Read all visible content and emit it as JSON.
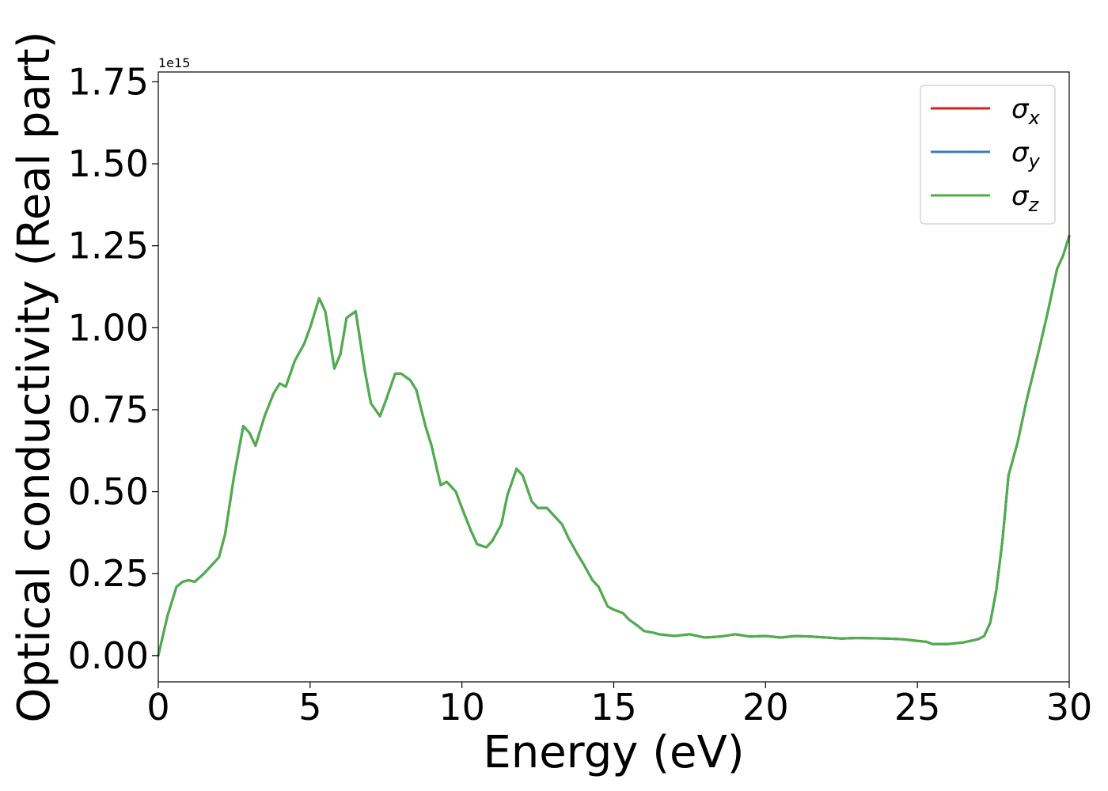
{
  "chart_data": {
    "type": "line",
    "xlabel": "Energy (eV)",
    "ylabel": "Optical conductivity (Real part)",
    "y_offset_label": "1e15",
    "xlim": [
      0,
      30
    ],
    "ylim": [
      -0.08,
      1.78
    ],
    "xticks": [
      0,
      5,
      10,
      15,
      20,
      25,
      30
    ],
    "xtick_labels": [
      "0",
      "5",
      "10",
      "15",
      "20",
      "25",
      "30"
    ],
    "yticks": [
      0.0,
      0.25,
      0.5,
      0.75,
      1.0,
      1.25,
      1.5,
      1.75
    ],
    "ytick_labels": [
      "0.00",
      "0.25",
      "0.50",
      "0.75",
      "1.00",
      "1.25",
      "1.50",
      "1.75"
    ],
    "grid": false,
    "legend_position": "top-right",
    "series": [
      {
        "name": "σx",
        "name_base": "σ",
        "name_sub": "x",
        "color": "#e41a1c",
        "x": [
          0,
          0.3,
          0.6,
          0.8,
          1.0,
          1.2,
          1.5,
          1.8,
          2.0,
          2.2,
          2.5,
          2.8,
          3.0,
          3.2,
          3.5,
          3.8,
          4.0,
          4.2,
          4.5,
          4.8,
          5.0,
          5.3,
          5.5,
          5.8,
          6.0,
          6.2,
          6.5,
          6.8,
          7.0,
          7.3,
          7.5,
          7.8,
          8.0,
          8.3,
          8.5,
          8.8,
          9.0,
          9.3,
          9.5,
          9.8,
          10.0,
          10.3,
          10.5,
          10.8,
          11.0,
          11.3,
          11.5,
          11.8,
          12.0,
          12.3,
          12.5,
          12.8,
          13.0,
          13.3,
          13.5,
          13.8,
          14.0,
          14.3,
          14.5,
          14.8,
          15.0,
          15.3,
          15.5,
          15.8,
          16.0,
          16.3,
          16.5,
          17.0,
          17.5,
          18.0,
          18.5,
          19.0,
          19.5,
          20.0,
          20.5,
          21.0,
          21.5,
          22.0,
          22.5,
          23.0,
          23.5,
          24.0,
          24.5,
          25.0,
          25.3,
          25.5,
          26.0,
          26.5,
          27.0,
          27.2,
          27.4,
          27.6,
          27.8,
          28.0,
          28.3,
          28.6,
          29.0,
          29.3,
          29.6,
          29.8,
          30.0
        ],
        "y": [
          0.0,
          0.12,
          0.21,
          0.225,
          0.23,
          0.225,
          0.25,
          0.28,
          0.3,
          0.37,
          0.55,
          0.7,
          0.68,
          0.64,
          0.73,
          0.8,
          0.83,
          0.82,
          0.9,
          0.95,
          1.0,
          1.09,
          1.05,
          0.875,
          0.92,
          1.03,
          1.05,
          0.87,
          0.77,
          0.73,
          0.78,
          0.86,
          0.86,
          0.84,
          0.81,
          0.7,
          0.64,
          0.52,
          0.53,
          0.5,
          0.45,
          0.38,
          0.34,
          0.33,
          0.35,
          0.4,
          0.49,
          0.57,
          0.55,
          0.47,
          0.45,
          0.45,
          0.43,
          0.4,
          0.36,
          0.31,
          0.28,
          0.23,
          0.21,
          0.15,
          0.14,
          0.13,
          0.11,
          0.09,
          0.075,
          0.07,
          0.065,
          0.06,
          0.065,
          0.055,
          0.058,
          0.065,
          0.058,
          0.06,
          0.055,
          0.06,
          0.058,
          0.055,
          0.052,
          0.054,
          0.053,
          0.052,
          0.05,
          0.045,
          0.042,
          0.035,
          0.035,
          0.04,
          0.05,
          0.06,
          0.1,
          0.2,
          0.35,
          0.55,
          0.65,
          0.78,
          0.93,
          1.05,
          1.18,
          1.22,
          1.28
        ]
      },
      {
        "name": "σy",
        "name_base": "σ",
        "name_sub": "y",
        "color": "#377eb8",
        "x": [
          0,
          0.3,
          0.6,
          0.8,
          1.0,
          1.2,
          1.5,
          1.8,
          2.0,
          2.2,
          2.5,
          2.8,
          3.0,
          3.2,
          3.5,
          3.8,
          4.0,
          4.2,
          4.5,
          4.8,
          5.0,
          5.3,
          5.5,
          5.8,
          6.0,
          6.2,
          6.5,
          6.8,
          7.0,
          7.3,
          7.5,
          7.8,
          8.0,
          8.3,
          8.5,
          8.8,
          9.0,
          9.3,
          9.5,
          9.8,
          10.0,
          10.3,
          10.5,
          10.8,
          11.0,
          11.3,
          11.5,
          11.8,
          12.0,
          12.3,
          12.5,
          12.8,
          13.0,
          13.3,
          13.5,
          13.8,
          14.0,
          14.3,
          14.5,
          14.8,
          15.0,
          15.3,
          15.5,
          15.8,
          16.0,
          16.3,
          16.5,
          17.0,
          17.5,
          18.0,
          18.5,
          19.0,
          19.5,
          20.0,
          20.5,
          21.0,
          21.5,
          22.0,
          22.5,
          23.0,
          23.5,
          24.0,
          24.5,
          25.0,
          25.3,
          25.5,
          26.0,
          26.5,
          27.0,
          27.2,
          27.4,
          27.6,
          27.8,
          28.0,
          28.3,
          28.6,
          29.0,
          29.3,
          29.6,
          29.8,
          30.0
        ],
        "y": [
          0.0,
          0.12,
          0.21,
          0.225,
          0.23,
          0.225,
          0.25,
          0.28,
          0.3,
          0.37,
          0.55,
          0.7,
          0.68,
          0.64,
          0.73,
          0.8,
          0.83,
          0.82,
          0.9,
          0.95,
          1.0,
          1.09,
          1.05,
          0.875,
          0.92,
          1.03,
          1.05,
          0.87,
          0.77,
          0.73,
          0.78,
          0.86,
          0.86,
          0.84,
          0.81,
          0.7,
          0.64,
          0.52,
          0.53,
          0.5,
          0.45,
          0.38,
          0.34,
          0.33,
          0.35,
          0.4,
          0.49,
          0.57,
          0.55,
          0.47,
          0.45,
          0.45,
          0.43,
          0.4,
          0.36,
          0.31,
          0.28,
          0.23,
          0.21,
          0.15,
          0.14,
          0.13,
          0.11,
          0.09,
          0.075,
          0.07,
          0.065,
          0.06,
          0.065,
          0.055,
          0.058,
          0.065,
          0.058,
          0.06,
          0.055,
          0.06,
          0.058,
          0.055,
          0.052,
          0.054,
          0.053,
          0.052,
          0.05,
          0.045,
          0.042,
          0.035,
          0.035,
          0.04,
          0.05,
          0.06,
          0.1,
          0.2,
          0.35,
          0.55,
          0.65,
          0.78,
          0.93,
          1.05,
          1.18,
          1.22,
          1.28
        ]
      },
      {
        "name": "σz",
        "name_base": "σ",
        "name_sub": "z",
        "color": "#4daf4a",
        "x": [
          0,
          0.3,
          0.6,
          0.8,
          1.0,
          1.2,
          1.5,
          1.8,
          2.0,
          2.2,
          2.5,
          2.8,
          3.0,
          3.2,
          3.5,
          3.8,
          4.0,
          4.2,
          4.5,
          4.8,
          5.0,
          5.3,
          5.5,
          5.8,
          6.0,
          6.2,
          6.5,
          6.8,
          7.0,
          7.3,
          7.5,
          7.8,
          8.0,
          8.3,
          8.5,
          8.8,
          9.0,
          9.3,
          9.5,
          9.8,
          10.0,
          10.3,
          10.5,
          10.8,
          11.0,
          11.3,
          11.5,
          11.8,
          12.0,
          12.3,
          12.5,
          12.8,
          13.0,
          13.3,
          13.5,
          13.8,
          14.0,
          14.3,
          14.5,
          14.8,
          15.0,
          15.3,
          15.5,
          15.8,
          16.0,
          16.3,
          16.5,
          17.0,
          17.5,
          18.0,
          18.5,
          19.0,
          19.5,
          20.0,
          20.5,
          21.0,
          21.5,
          22.0,
          22.5,
          23.0,
          23.5,
          24.0,
          24.5,
          25.0,
          25.3,
          25.5,
          26.0,
          26.5,
          27.0,
          27.2,
          27.4,
          27.6,
          27.8,
          28.0,
          28.3,
          28.6,
          29.0,
          29.3,
          29.6,
          29.8,
          30.0
        ],
        "y": [
          0.0,
          0.12,
          0.21,
          0.225,
          0.23,
          0.225,
          0.25,
          0.28,
          0.3,
          0.37,
          0.55,
          0.7,
          0.68,
          0.64,
          0.73,
          0.8,
          0.83,
          0.82,
          0.9,
          0.95,
          1.0,
          1.09,
          1.05,
          0.875,
          0.92,
          1.03,
          1.05,
          0.87,
          0.77,
          0.73,
          0.78,
          0.86,
          0.86,
          0.84,
          0.81,
          0.7,
          0.64,
          0.52,
          0.53,
          0.5,
          0.45,
          0.38,
          0.34,
          0.33,
          0.35,
          0.4,
          0.49,
          0.57,
          0.55,
          0.47,
          0.45,
          0.45,
          0.43,
          0.4,
          0.36,
          0.31,
          0.28,
          0.23,
          0.21,
          0.15,
          0.14,
          0.13,
          0.11,
          0.09,
          0.075,
          0.07,
          0.065,
          0.06,
          0.065,
          0.055,
          0.058,
          0.065,
          0.058,
          0.06,
          0.055,
          0.06,
          0.058,
          0.055,
          0.052,
          0.054,
          0.053,
          0.052,
          0.05,
          0.045,
          0.042,
          0.035,
          0.035,
          0.04,
          0.05,
          0.06,
          0.1,
          0.2,
          0.35,
          0.55,
          0.65,
          0.78,
          0.93,
          1.05,
          1.18,
          1.22,
          1.28
        ]
      }
    ]
  }
}
